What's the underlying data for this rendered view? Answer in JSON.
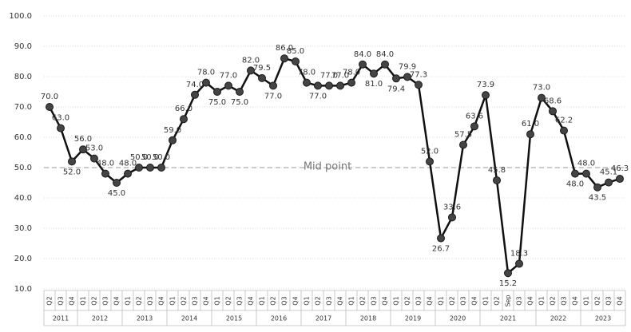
{
  "chart_data": {
    "type": "line",
    "categories": [
      "Q2",
      "Q3",
      "Q4",
      "Q1",
      "Q2",
      "Q3",
      "Q4",
      "Q1",
      "Q2",
      "Q3",
      "Q4",
      "Q1",
      "Q2",
      "Q3",
      "Q4",
      "Q1",
      "Q2",
      "Q3",
      "Q4",
      "Q1",
      "Q2",
      "Q3",
      "Q4",
      "Q1",
      "Q2",
      "Q3",
      "Q4",
      "Q1",
      "Q2",
      "Q3",
      "Q4",
      "Q1",
      "Q2",
      "Q3",
      "Q4",
      "Q1",
      "Q2",
      "Q3",
      "Q4",
      "Q1",
      "Q2",
      "Sep",
      "Q3",
      "Q4",
      "Q1",
      "Q2",
      "Q3",
      "Q4",
      "Q1",
      "Q2",
      "Q3",
      "Q4"
    ],
    "year_groups": [
      {
        "label": "2011",
        "size": 3
      },
      {
        "label": "2012",
        "size": 4
      },
      {
        "label": "2013",
        "size": 4
      },
      {
        "label": "2014",
        "size": 4
      },
      {
        "label": "2015",
        "size": 4
      },
      {
        "label": "2016",
        "size": 4
      },
      {
        "label": "2017",
        "size": 4
      },
      {
        "label": "2018",
        "size": 4
      },
      {
        "label": "2019",
        "size": 4
      },
      {
        "label": "2020",
        "size": 4
      },
      {
        "label": "2021",
        "size": 5
      },
      {
        "label": "2022",
        "size": 4
      },
      {
        "label": "2023",
        "size": 4
      }
    ],
    "series": [
      {
        "color": "#111111",
        "values": [
          70,
          63,
          52,
          56,
          53,
          48,
          45,
          48,
          50,
          50,
          50,
          59,
          66,
          74,
          78,
          75,
          77,
          75,
          82,
          79.5,
          77,
          86,
          85,
          78,
          77,
          77,
          77,
          78,
          84,
          81,
          84,
          79.4,
          79.9,
          77.3,
          52,
          26.7,
          33.6,
          57.5,
          63.6,
          73.9,
          45.8,
          15.2,
          18.3,
          61,
          73,
          68.6,
          62.2,
          48,
          48,
          43.5,
          45.1,
          46.3
        ],
        "value_labels": [
          "70.0",
          "63.0",
          "52.0",
          "56.0",
          "53.0",
          "48.0",
          "45.0",
          "48.0",
          "50.0",
          "50.0",
          "50.0",
          "59.0",
          "66.0",
          "74.0",
          "78.0",
          "75.0",
          "77.0",
          "75.0",
          "82.0",
          "79.5",
          "77.0",
          "86.0",
          "85.0",
          "78.0",
          "77.0",
          "77.0",
          "77.0",
          "78.0",
          "84.0",
          "81.0",
          "84.0",
          "79.4",
          "79.9",
          "77.3",
          "52.0",
          "26.7",
          "33.6",
          "57.5",
          "63.6",
          "73.9",
          "45.8",
          "15.2",
          "18.3",
          "61.0",
          "73.0",
          "68.6",
          "62.2",
          "48.0",
          "48.0",
          "43.5",
          "45.1",
          "46.3"
        ]
      }
    ],
    "reference_line": {
      "value": 50,
      "label": "Mid point"
    },
    "ylim": [
      10,
      100
    ],
    "yticks": [
      {
        "value": 10,
        "label": "10.0"
      },
      {
        "value": 20,
        "label": "20.0"
      },
      {
        "value": 30,
        "label": "30.0"
      },
      {
        "value": 40,
        "label": "40.0"
      },
      {
        "value": 50,
        "label": "50.0"
      },
      {
        "value": 60,
        "label": "60.0"
      },
      {
        "value": 70,
        "label": "70.0"
      },
      {
        "value": 80,
        "label": "80.0"
      },
      {
        "value": 90,
        "label": "90.0"
      },
      {
        "value": 100,
        "label": "100.0"
      }
    ],
    "grid": true
  }
}
